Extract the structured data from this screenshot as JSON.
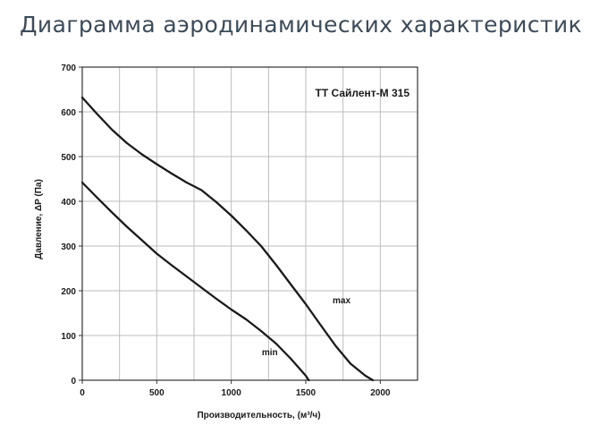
{
  "page": {
    "title": "Диаграмма аэродинамических характеристик"
  },
  "chart_data": {
    "type": "line",
    "title": "ТТ Сайлент-М 315",
    "xlabel": "Производительность, (м³/ч)",
    "ylabel": "Давление, ΔP (Па)",
    "xlim": [
      0,
      2250
    ],
    "ylim": [
      0,
      700
    ],
    "xticks": [
      0,
      500,
      1000,
      1500,
      2000
    ],
    "yticks": [
      0,
      100,
      200,
      300,
      400,
      500,
      600,
      700
    ],
    "xgrid": [
      0,
      250,
      500,
      750,
      1000,
      1250,
      1500,
      1750,
      2000,
      2250
    ],
    "grid": true,
    "series": [
      {
        "name": "max",
        "color": "#1a1a1a",
        "x": [
          0,
          100,
          200,
          300,
          400,
          500,
          600,
          700,
          800,
          900,
          1000,
          1100,
          1200,
          1300,
          1400,
          1500,
          1600,
          1700,
          1800,
          1900,
          1950
        ],
        "y": [
          632,
          595,
          560,
          530,
          505,
          483,
          462,
          442,
          425,
          398,
          368,
          335,
          300,
          258,
          214,
          170,
          123,
          77,
          37,
          10,
          0
        ]
      },
      {
        "name": "min",
        "color": "#1a1a1a",
        "x": [
          0,
          100,
          200,
          300,
          400,
          500,
          600,
          700,
          800,
          900,
          1000,
          1100,
          1200,
          1300,
          1400,
          1500,
          1520
        ],
        "y": [
          442,
          408,
          375,
          343,
          313,
          283,
          257,
          232,
          207,
          182,
          158,
          136,
          110,
          82,
          48,
          10,
          0
        ]
      }
    ],
    "series_labels": [
      {
        "name": "max",
        "x": 1680,
        "y": 172
      },
      {
        "name": "min",
        "x": 1205,
        "y": 56
      }
    ]
  }
}
